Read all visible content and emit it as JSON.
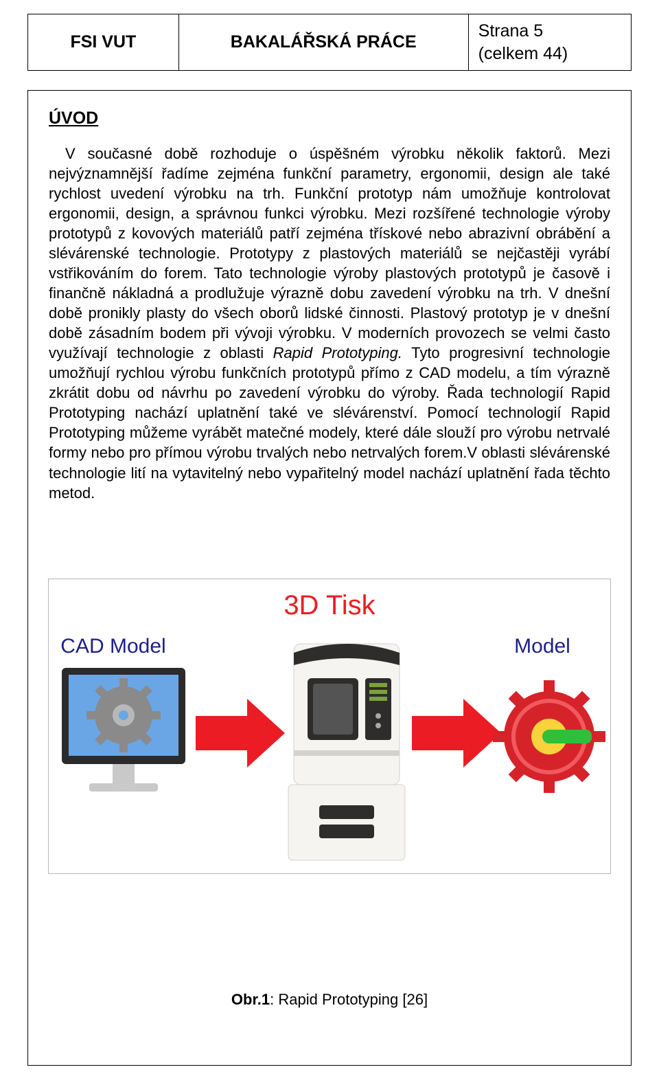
{
  "header": {
    "left": "FSI VUT",
    "center": "BAKALÁŘSKÁ PRÁCE",
    "right_line1": "Strana 5",
    "right_line2": "(celkem 44)"
  },
  "section_title": "ÚVOD",
  "body_html": "V současné době rozhoduje o úspěšném výrobku několik faktorů. Mezi nejvýznamnější řadíme zejména funkční parametry, ergonomii, design ale také rychlost uvedení výrobku na trh. Funkční prototyp nám umožňuje kontrolovat ergonomii, design, a správnou funkci výrobku. Mezi rozšířené technologie výroby prototypů z kovových materiálů patří zejména třískové nebo abrazivní obrábění a slévárenské technologie. Prototypy z plastových materiálů se nejčastěji vyrábí vstřikováním do forem. Tato technologie výroby plastových prototypů je časově i finančně nákladná a prodlužuje výrazně dobu zavedení výrobku na trh. V dnešní době pronikly plasty do všech oborů lidské činnosti. Plastový prototyp je v dnešní době zásadním bodem při vývoji výrobku. V moderních provozech se velmi často využívají technologie z oblasti <span class=\"italic\">Rapid Prototyping.</span> Tyto progresivní technologie umožňují rychlou výrobu funkčních prototypů přímo z CAD modelu, a tím výrazně zkrátit dobu od návrhu po zavedení výrobku do výroby. Řada technologií Rapid Prototyping nachází uplatnění také ve slévárenství. Pomocí technologií Rapid Prototyping můžeme vyrábět matečné modely, které dále slouží pro výrobu netrvalé formy nebo pro přímou výrobu trvalých nebo netrvalých forem.V oblasti slévárenské technologie lití na vytavitelný nebo vypařitelný model nachází uplatnění řada těchto metod.",
  "figure": {
    "title": "3D Tisk",
    "left_label": "CAD Model",
    "right_label": "Model",
    "colors": {
      "arrow": "#ec1c24",
      "title_color": "#ed1c24",
      "label_color": "#1d2087",
      "monitor_bezel": "#2b2b2b",
      "monitor_screen": "#6aa6e6",
      "monitor_stand": "#c9c9c9",
      "gear_gray": "#8a8a8a",
      "printer_body": "#f5f4f0",
      "printer_dark": "#2e2d2b",
      "printer_accent": "#7aa23a",
      "model_red": "#d6232a",
      "model_green": "#2fbf3a",
      "model_yellow": "#f9d23c",
      "border": "#b7b7b7"
    }
  },
  "caption": {
    "bold": "Obr.1",
    "rest": ": Rapid Prototyping [26]"
  }
}
